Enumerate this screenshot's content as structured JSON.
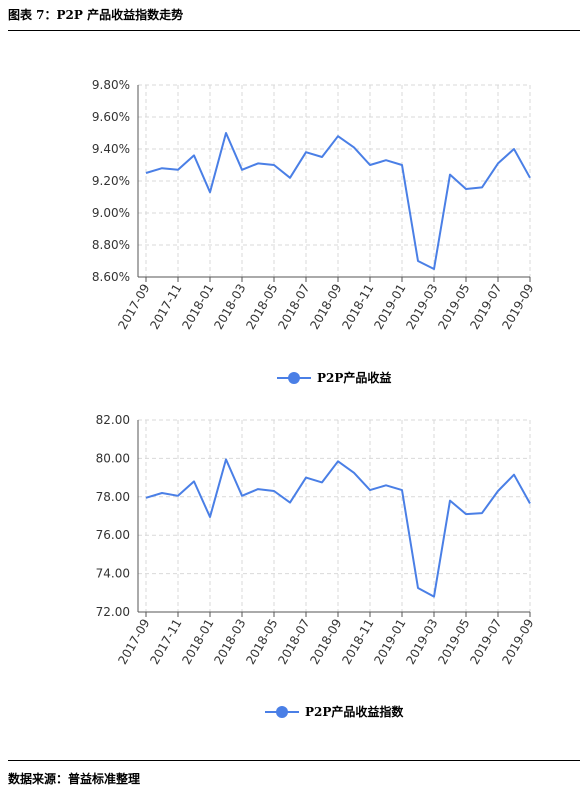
{
  "header": {
    "title": "图表 7：P2P 产品收益指数走势"
  },
  "footer": {
    "source": "数据来源：普益标准整理"
  },
  "colors": {
    "line": "#4a7fe6",
    "grid": "#d9d9d9",
    "axis": "#555555"
  },
  "chart_data": [
    {
      "type": "line",
      "x": [
        "2017-09",
        "2017-10",
        "2017-11",
        "2017-12",
        "2018-01",
        "2018-02",
        "2018-03",
        "2018-04",
        "2018-05",
        "2018-06",
        "2018-07",
        "2018-08",
        "2018-09",
        "2018-10",
        "2018-11",
        "2018-12",
        "2019-01",
        "2019-02",
        "2019-03",
        "2019-04",
        "2019-05",
        "2019-06",
        "2019-07",
        "2019-08",
        "2019-09"
      ],
      "tick_labels": [
        "2017-09",
        "2017-11",
        "2018-01",
        "2018-03",
        "2018-05",
        "2018-07",
        "2018-09",
        "2018-11",
        "2019-01",
        "2019-03",
        "2019-05",
        "2019-07",
        "2019-09"
      ],
      "series": [
        {
          "name": "P2P产品收益",
          "values": [
            9.25,
            9.28,
            9.27,
            9.36,
            9.13,
            9.5,
            9.27,
            9.31,
            9.3,
            9.22,
            9.38,
            9.35,
            9.48,
            9.41,
            9.3,
            9.33,
            9.3,
            8.7,
            8.65,
            9.24,
            9.15,
            9.16,
            9.31,
            9.4,
            9.22
          ]
        }
      ],
      "yticks": [
        "9.80%",
        "9.60%",
        "9.40%",
        "9.20%",
        "9.00%",
        "8.80%",
        "8.60%"
      ],
      "ylim": [
        8.6,
        9.8
      ],
      "grid": true,
      "legend": "bottom-center"
    },
    {
      "type": "line",
      "x": [
        "2017-09",
        "2017-10",
        "2017-11",
        "2017-12",
        "2018-01",
        "2018-02",
        "2018-03",
        "2018-04",
        "2018-05",
        "2018-06",
        "2018-07",
        "2018-08",
        "2018-09",
        "2018-10",
        "2018-11",
        "2018-12",
        "2019-01",
        "2019-02",
        "2019-03",
        "2019-04",
        "2019-05",
        "2019-06",
        "2019-07",
        "2019-08",
        "2019-09"
      ],
      "tick_labels": [
        "2017-09",
        "2017-11",
        "2018-01",
        "2018-03",
        "2018-05",
        "2018-07",
        "2018-09",
        "2018-11",
        "2019-01",
        "2019-03",
        "2019-05",
        "2019-07",
        "2019-09"
      ],
      "series": [
        {
          "name": "P2P产品收益指数",
          "values": [
            77.95,
            78.2,
            78.05,
            78.8,
            76.95,
            79.95,
            78.05,
            78.4,
            78.3,
            77.7,
            79.0,
            78.75,
            79.85,
            79.25,
            78.35,
            78.6,
            78.35,
            73.25,
            72.8,
            77.8,
            77.1,
            77.15,
            78.3,
            79.15,
            77.65
          ]
        }
      ],
      "yticks": [
        "82.00",
        "80.00",
        "78.00",
        "76.00",
        "74.00",
        "72.00"
      ],
      "ylim": [
        72,
        82
      ],
      "grid": true,
      "legend": "bottom-center"
    }
  ]
}
